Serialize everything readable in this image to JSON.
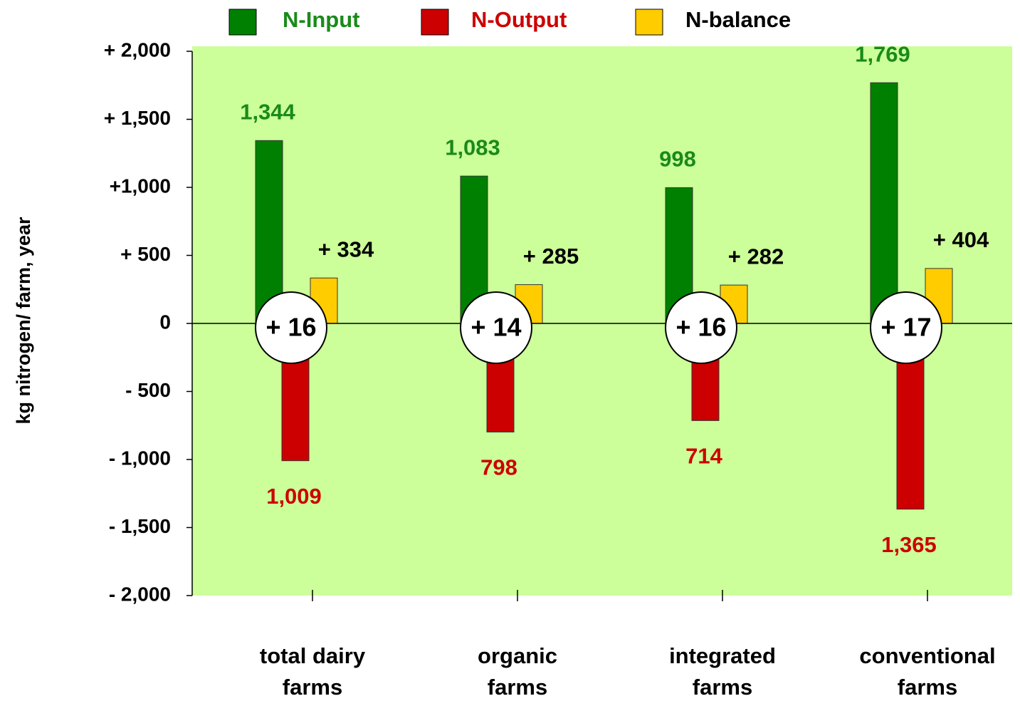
{
  "chart_data": {
    "type": "bar",
    "y_label": "kg nitrogen/ farm, year",
    "categories": [
      [
        "total dairy",
        "farms"
      ],
      [
        "organic",
        "farms"
      ],
      [
        "integrated",
        "farms"
      ],
      [
        "conventional",
        "farms"
      ]
    ],
    "series": [
      {
        "name": "N-Input",
        "color": "#008000",
        "label_color": "#1a8a1a",
        "values": [
          1344,
          1083,
          998,
          1769
        ],
        "value_labels": [
          "1,344",
          "1,083",
          "998",
          "1,769"
        ]
      },
      {
        "name": "N-Output",
        "color": "#cc0000",
        "label_color": "#cc0000",
        "values": [
          -1009,
          -798,
          -714,
          -1365
        ],
        "value_labels": [
          "1,009",
          "798",
          "714",
          "1,365"
        ]
      },
      {
        "name": "N-balance",
        "color": "#ffcc00",
        "label_color": "#000000",
        "values": [
          334,
          285,
          282,
          404
        ],
        "value_labels": [
          "+ 334",
          "+ 285",
          "+ 282",
          "+ 404"
        ]
      }
    ],
    "circle_values": [
      16,
      14,
      16,
      17
    ],
    "circle_labels": [
      "+ 16",
      "+ 14",
      "+ 16",
      "+ 17"
    ],
    "ylim": [
      -2000,
      2000
    ],
    "yticks": [
      {
        "value": 2000,
        "label": "+ 2,000"
      },
      {
        "value": 1500,
        "label": "+ 1,500"
      },
      {
        "value": 1000,
        "label": "+1,000"
      },
      {
        "value": 500,
        "label": "+ 500"
      },
      0,
      {
        "value": -500,
        "label": "- 500"
      },
      {
        "value": -1000,
        "label": "- 1,000"
      },
      {
        "value": -1500,
        "label": "- 1,500"
      },
      {
        "value": -2000,
        "label": "- 2,000"
      }
    ],
    "plot_background": "#ccff99",
    "grid": false
  }
}
